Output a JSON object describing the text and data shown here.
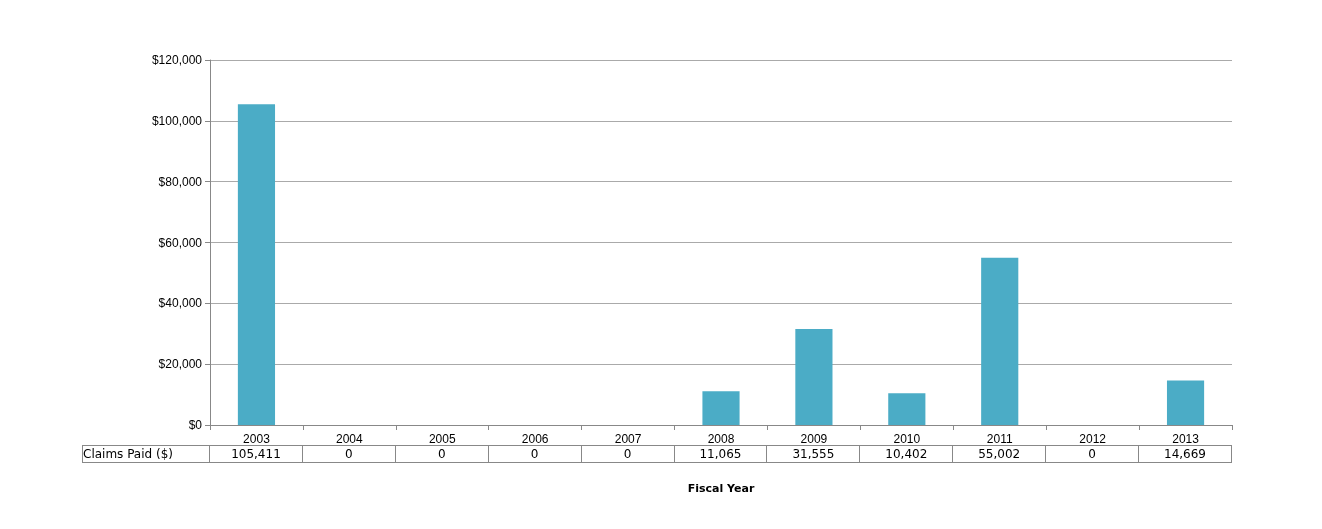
{
  "chart_data": {
    "type": "bar",
    "xlabel": "Fiscal Year",
    "categories": [
      "2003",
      "2004",
      "2005",
      "2006",
      "2007",
      "2008",
      "2009",
      "2010",
      "2011",
      "2012",
      "2013"
    ],
    "series": [
      {
        "name": "Claims Paid ($)",
        "color": "#4bacc6",
        "values": [
          105411,
          0,
          0,
          0,
          0,
          11065,
          31555,
          10402,
          55002,
          0,
          14669
        ]
      }
    ],
    "value_labels": [
      "105,411",
      "0",
      "0",
      "0",
      "0",
      "11,065",
      "31,555",
      "10,402",
      "55,002",
      "0",
      "14,669"
    ],
    "ylim": [
      0,
      120000
    ],
    "yticks": [
      {
        "value": 0,
        "label": "$0"
      },
      {
        "value": 20000,
        "label": "$20,000"
      },
      {
        "value": 40000,
        "label": "$40,000"
      },
      {
        "value": 60000,
        "label": "$60,000"
      },
      {
        "value": 80000,
        "label": "$80,000"
      },
      {
        "value": 100000,
        "label": "$100,000"
      },
      {
        "value": 120000,
        "label": "$120,000"
      }
    ],
    "grid": "y"
  }
}
